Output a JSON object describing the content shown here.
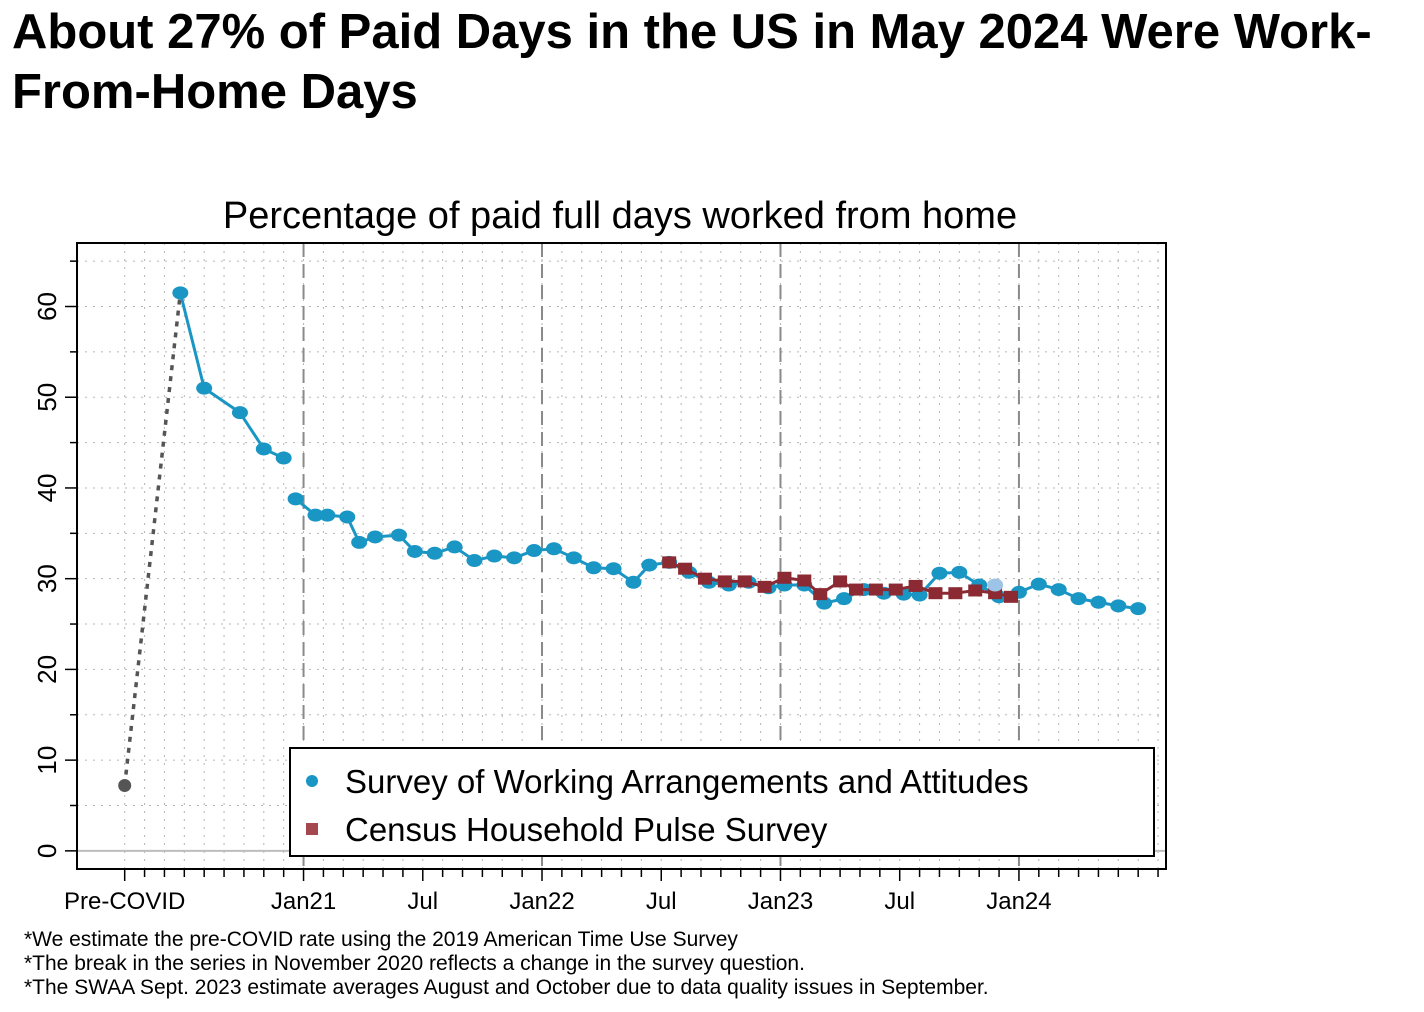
{
  "headline": "About 27% of Paid Days in the US in May 2024 Were Work-From-Home Days",
  "chart_data": {
    "type": "line",
    "title": "Percentage of paid full days worked from home",
    "xlabel": "",
    "ylabel": "",
    "ylim": [
      -2,
      67
    ],
    "yticks": [
      0,
      10,
      20,
      30,
      40,
      50,
      60
    ],
    "xticks": [
      {
        "label": "Pre-COVID",
        "x": 0
      },
      {
        "label": "Jan21",
        "x": 9
      },
      {
        "label": "Jul",
        "x": 15
      },
      {
        "label": "Jan22",
        "x": 21
      },
      {
        "label": "Jul",
        "x": 27
      },
      {
        "label": "Jan23",
        "x": 33
      },
      {
        "label": "Jul",
        "x": 39
      },
      {
        "label": "Jan24",
        "x": 45
      }
    ],
    "year_boundaries": [
      9,
      21,
      33,
      45
    ],
    "grid": true,
    "legend_position": "bottom-right",
    "colors": {
      "swaa": "#1a96c4",
      "census": "#8c2a33",
      "precovid": "#555555",
      "swaa_sept_2023": "#9dc3e6"
    },
    "series": [
      {
        "name": "Survey of Working Arrangements and Attitudes",
        "marker": "circle",
        "segments": [
          [
            {
              "x": 1.4,
              "y": 61.5
            },
            {
              "x": 2.0,
              "y": 51.0
            },
            {
              "x": 2.9,
              "y": 48.3
            },
            {
              "x": 3.5,
              "y": 44.3
            },
            {
              "x": 4.0,
              "y": 43.3
            }
          ],
          [
            {
              "x": 4.3,
              "y": 38.8
            },
            {
              "x": 4.8,
              "y": 37.0
            },
            {
              "x": 5.1,
              "y": 37.0
            },
            {
              "x": 5.6,
              "y": 36.8
            },
            {
              "x": 5.9,
              "y": 34.0
            },
            {
              "x": 6.3,
              "y": 34.6
            },
            {
              "x": 6.9,
              "y": 34.8
            },
            {
              "x": 7.3,
              "y": 33.0
            },
            {
              "x": 7.8,
              "y": 32.8
            },
            {
              "x": 8.3,
              "y": 33.5
            },
            {
              "x": 8.8,
              "y": 32.0
            },
            {
              "x": 9.3,
              "y": 32.5
            },
            {
              "x": 9.8,
              "y": 32.3
            },
            {
              "x": 10.3,
              "y": 33.1
            },
            {
              "x": 10.8,
              "y": 33.3
            },
            {
              "x": 11.3,
              "y": 32.3
            },
            {
              "x": 11.8,
              "y": 31.2
            },
            {
              "x": 12.3,
              "y": 31.1
            },
            {
              "x": 12.8,
              "y": 29.6
            },
            {
              "x": 13.2,
              "y": 31.5
            },
            {
              "x": 13.7,
              "y": 31.8
            },
            {
              "x": 14.2,
              "y": 30.7
            },
            {
              "x": 14.7,
              "y": 29.6
            },
            {
              "x": 15.2,
              "y": 29.3
            },
            {
              "x": 15.7,
              "y": 29.6
            },
            {
              "x": 16.2,
              "y": 29.0
            },
            {
              "x": 16.6,
              "y": 29.3
            },
            {
              "x": 17.1,
              "y": 29.3
            },
            {
              "x": 17.6,
              "y": 27.3
            },
            {
              "x": 18.1,
              "y": 27.8
            },
            {
              "x": 18.6,
              "y": 28.8
            },
            {
              "x": 19.1,
              "y": 28.4
            },
            {
              "x": 19.6,
              "y": 28.3
            },
            {
              "x": 20.0,
              "y": 28.2
            },
            {
              "x": 20.5,
              "y": 30.6
            },
            {
              "x": 21.0,
              "y": 30.7
            },
            {
              "x": 21.5,
              "y": 29.3
            },
            {
              "x": 22.0,
              "y": 28.0
            },
            {
              "x": 22.5,
              "y": 28.5
            },
            {
              "x": 23.0,
              "y": 29.4
            },
            {
              "x": 23.5,
              "y": 28.8
            },
            {
              "x": 24.0,
              "y": 27.8
            },
            {
              "x": 24.5,
              "y": 27.4
            },
            {
              "x": 25.0,
              "y": 27.0
            },
            {
              "x": 25.5,
              "y": 26.7
            }
          ]
        ]
      },
      {
        "name": "Census Household Pulse Survey",
        "marker": "square",
        "segments": [
          [
            {
              "x": 13.7,
              "y": 31.8
            },
            {
              "x": 14.1,
              "y": 31.1
            },
            {
              "x": 14.6,
              "y": 30.0
            },
            {
              "x": 15.1,
              "y": 29.7
            },
            {
              "x": 15.6,
              "y": 29.7
            },
            {
              "x": 16.1,
              "y": 29.1
            },
            {
              "x": 16.6,
              "y": 30.1
            },
            {
              "x": 17.1,
              "y": 29.8
            },
            {
              "x": 17.5,
              "y": 28.3
            },
            {
              "x": 18.0,
              "y": 29.7
            },
            {
              "x": 18.4,
              "y": 28.8
            },
            {
              "x": 18.9,
              "y": 28.8
            },
            {
              "x": 19.4,
              "y": 28.8
            },
            {
              "x": 19.9,
              "y": 29.2
            },
            {
              "x": 20.4,
              "y": 28.4
            },
            {
              "x": 20.9,
              "y": 28.4
            },
            {
              "x": 21.4,
              "y": 28.7
            },
            {
              "x": 21.9,
              "y": 28.4
            },
            {
              "x": 22.3,
              "y": 28.0
            }
          ]
        ]
      }
    ],
    "precovid": {
      "x": 0,
      "y": 7.2
    },
    "precovid_link": [
      {
        "x": 0,
        "y": 7.2
      },
      {
        "x": 1.4,
        "y": 61.5
      }
    ],
    "swaa_sept_2023": {
      "x": 21.9,
      "y": 29.3
    },
    "legend": [
      {
        "label": "Survey of Working Arrangements and Attitudes",
        "marker": "circle"
      },
      {
        "label": "Census Household Pulse Survey",
        "marker": "square"
      }
    ]
  },
  "footnotes": [
    "*We estimate the pre-COVID rate using the 2019 American Time Use Survey",
    "*The break in the series in November 2020 reflects a change in the survey question.",
    "*The SWAA Sept. 2023 estimate averages August and October due to data quality issues in September."
  ]
}
